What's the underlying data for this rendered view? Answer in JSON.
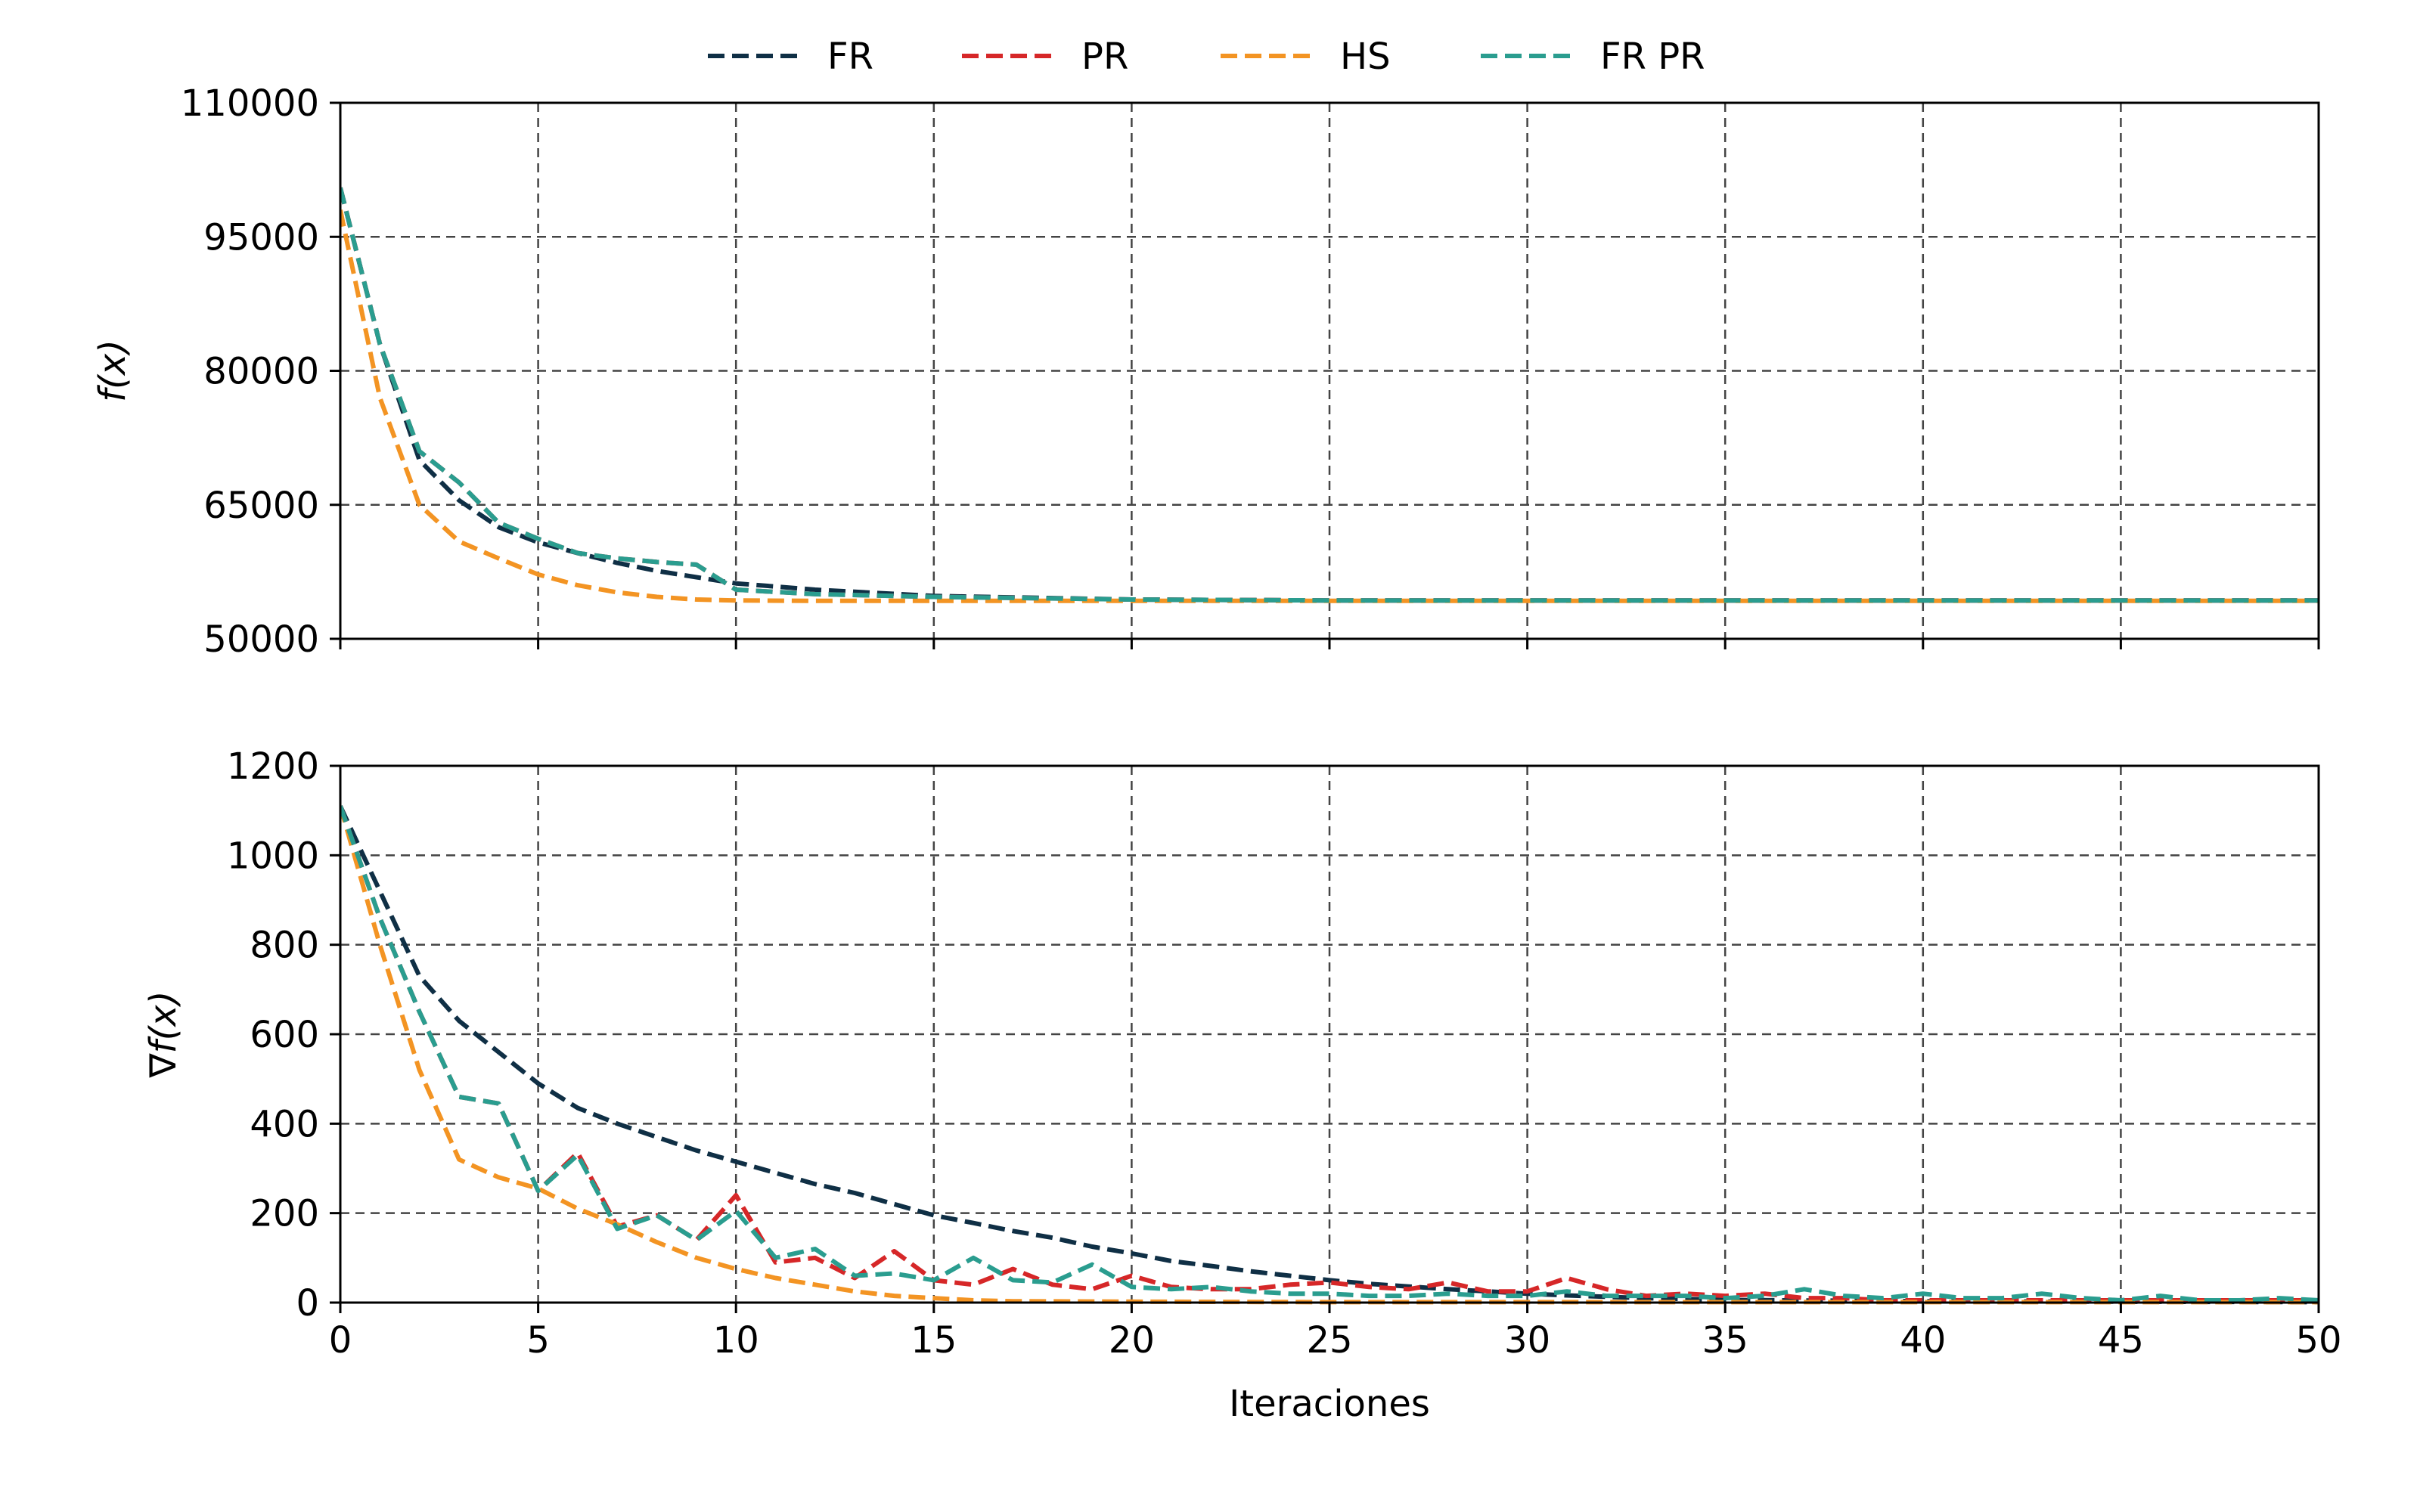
{
  "chart_data": [
    {
      "type": "line",
      "ylabel_math": "f(x)",
      "ylabel": "",
      "xlabel": "",
      "xlim": [
        0,
        50
      ],
      "ylim": [
        50000,
        110000
      ],
      "xticks": [
        0,
        5,
        10,
        15,
        20,
        25,
        30,
        35,
        40,
        45,
        50
      ],
      "yticks": [
        50000,
        65000,
        80000,
        95000,
        110000
      ],
      "grid": true,
      "series": [
        {
          "name": "FR",
          "color": "#0f2f45",
          "points": [
            [
              0,
              100500
            ],
            [
              1,
              83000
            ],
            [
              2,
              70000
            ],
            [
              3,
              65500
            ],
            [
              4,
              62500
            ],
            [
              5,
              60800
            ],
            [
              6,
              59600
            ],
            [
              7,
              58500
            ],
            [
              8,
              57600
            ],
            [
              9,
              56900
            ],
            [
              10,
              56200
            ],
            [
              12,
              55500
            ],
            [
              15,
              54800
            ],
            [
              20,
              54400
            ],
            [
              25,
              54300
            ],
            [
              30,
              54300
            ],
            [
              35,
              54300
            ],
            [
              40,
              54300
            ],
            [
              45,
              54300
            ],
            [
              50,
              54300
            ]
          ]
        },
        {
          "name": "PR",
          "color": "#d62728",
          "points": [
            [
              0,
              100500
            ],
            [
              1,
              83000
            ],
            [
              2,
              71000
            ],
            [
              3,
              67500
            ],
            [
              4,
              63000
            ],
            [
              5,
              61200
            ],
            [
              6,
              59600
            ],
            [
              7,
              59000
            ],
            [
              8,
              58600
            ],
            [
              9,
              58300
            ],
            [
              10,
              55500
            ],
            [
              12,
              55000
            ],
            [
              15,
              54700
            ],
            [
              20,
              54400
            ],
            [
              25,
              54300
            ],
            [
              30,
              54300
            ],
            [
              35,
              54300
            ],
            [
              40,
              54300
            ],
            [
              45,
              54300
            ],
            [
              50,
              54300
            ]
          ]
        },
        {
          "name": "HS",
          "color": "#f39423",
          "points": [
            [
              0,
              98000
            ],
            [
              1,
              77000
            ],
            [
              2,
              65000
            ],
            [
              3,
              60900
            ],
            [
              4,
              59000
            ],
            [
              5,
              57200
            ],
            [
              6,
              56000
            ],
            [
              7,
              55200
            ],
            [
              8,
              54700
            ],
            [
              9,
              54400
            ],
            [
              10,
              54300
            ],
            [
              12,
              54250
            ],
            [
              15,
              54250
            ],
            [
              20,
              54250
            ],
            [
              25,
              54250
            ],
            [
              30,
              54250
            ],
            [
              35,
              54250
            ],
            [
              40,
              54250
            ],
            [
              45,
              54250
            ],
            [
              50,
              54250
            ]
          ]
        },
        {
          "name": "FR PR",
          "color": "#2a9d8f",
          "points": [
            [
              0,
              100500
            ],
            [
              1,
              83000
            ],
            [
              2,
              71000
            ],
            [
              3,
              67500
            ],
            [
              4,
              63000
            ],
            [
              5,
              61200
            ],
            [
              6,
              59600
            ],
            [
              7,
              59000
            ],
            [
              8,
              58600
            ],
            [
              9,
              58300
            ],
            [
              10,
              55500
            ],
            [
              12,
              55000
            ],
            [
              15,
              54700
            ],
            [
              20,
              54400
            ],
            [
              25,
              54300
            ],
            [
              30,
              54300
            ],
            [
              35,
              54300
            ],
            [
              40,
              54300
            ],
            [
              45,
              54300
            ],
            [
              50,
              54300
            ]
          ]
        }
      ]
    },
    {
      "type": "line",
      "ylabel_math": "∇f(x)",
      "ylabel": "",
      "xlabel": "Iteraciones",
      "xlim": [
        0,
        50
      ],
      "ylim": [
        0,
        1200
      ],
      "xticks": [
        0,
        5,
        10,
        15,
        20,
        25,
        30,
        35,
        40,
        45,
        50
      ],
      "yticks": [
        0,
        200,
        400,
        600,
        800,
        1000,
        1200
      ],
      "grid": true,
      "series": [
        {
          "name": "FR",
          "color": "#0f2f45",
          "points": [
            [
              0,
              1110
            ],
            [
              1,
              920
            ],
            [
              2,
              730
            ],
            [
              3,
              630
            ],
            [
              4,
              560
            ],
            [
              5,
              490
            ],
            [
              6,
              435
            ],
            [
              7,
              400
            ],
            [
              8,
              370
            ],
            [
              9,
              340
            ],
            [
              10,
              315
            ],
            [
              11,
              290
            ],
            [
              12,
              265
            ],
            [
              13,
              245
            ],
            [
              14,
              220
            ],
            [
              15,
              195
            ],
            [
              16,
              178
            ],
            [
              17,
              160
            ],
            [
              18,
              145
            ],
            [
              19,
              125
            ],
            [
              20,
              110
            ],
            [
              21,
              93
            ],
            [
              22,
              82
            ],
            [
              23,
              70
            ],
            [
              24,
              60
            ],
            [
              25,
              50
            ],
            [
              26,
              42
            ],
            [
              27,
              36
            ],
            [
              28,
              30
            ],
            [
              29,
              25
            ],
            [
              30,
              20
            ],
            [
              31,
              16
            ],
            [
              32,
              13
            ],
            [
              33,
              10
            ],
            [
              34,
              8
            ],
            [
              35,
              6
            ],
            [
              40,
              3
            ],
            [
              45,
              2
            ],
            [
              50,
              1
            ]
          ]
        },
        {
          "name": "PR",
          "color": "#d62728",
          "points": [
            [
              0,
              1110
            ],
            [
              1,
              860
            ],
            [
              2,
              650
            ],
            [
              3,
              460
            ],
            [
              4,
              445
            ],
            [
              5,
              250
            ],
            [
              6,
              335
            ],
            [
              7,
              170
            ],
            [
              8,
              195
            ],
            [
              9,
              140
            ],
            [
              10,
              240
            ],
            [
              11,
              90
            ],
            [
              12,
              100
            ],
            [
              13,
              55
            ],
            [
              14,
              115
            ],
            [
              15,
              50
            ],
            [
              16,
              40
            ],
            [
              17,
              75
            ],
            [
              18,
              40
            ],
            [
              19,
              30
            ],
            [
              20,
              60
            ],
            [
              21,
              35
            ],
            [
              22,
              30
            ],
            [
              23,
              30
            ],
            [
              24,
              40
            ],
            [
              25,
              45
            ],
            [
              26,
              35
            ],
            [
              27,
              30
            ],
            [
              28,
              45
            ],
            [
              29,
              25
            ],
            [
              30,
              25
            ],
            [
              31,
              55
            ],
            [
              32,
              30
            ],
            [
              33,
              15
            ],
            [
              34,
              20
            ],
            [
              35,
              15
            ],
            [
              36,
              20
            ],
            [
              37,
              10
            ],
            [
              38,
              10
            ],
            [
              39,
              5
            ],
            [
              40,
              5
            ],
            [
              42,
              5
            ],
            [
              45,
              5
            ],
            [
              48,
              5
            ],
            [
              50,
              5
            ]
          ]
        },
        {
          "name": "HS",
          "color": "#f39423",
          "points": [
            [
              0,
              1110
            ],
            [
              1,
              800
            ],
            [
              2,
              520
            ],
            [
              3,
              320
            ],
            [
              4,
              280
            ],
            [
              5,
              255
            ],
            [
              6,
              210
            ],
            [
              7,
              175
            ],
            [
              8,
              135
            ],
            [
              9,
              100
            ],
            [
              10,
              75
            ],
            [
              11,
              55
            ],
            [
              12,
              40
            ],
            [
              13,
              25
            ],
            [
              14,
              15
            ],
            [
              15,
              10
            ],
            [
              16,
              5
            ],
            [
              17,
              3
            ],
            [
              20,
              2
            ],
            [
              25,
              1
            ],
            [
              30,
              1
            ],
            [
              40,
              1
            ],
            [
              50,
              1
            ]
          ]
        },
        {
          "name": "FR PR",
          "color": "#2a9d8f",
          "points": [
            [
              0,
              1110
            ],
            [
              1,
              860
            ],
            [
              2,
              650
            ],
            [
              3,
              460
            ],
            [
              4,
              445
            ],
            [
              5,
              250
            ],
            [
              6,
              330
            ],
            [
              7,
              165
            ],
            [
              8,
              195
            ],
            [
              9,
              140
            ],
            [
              10,
              205
            ],
            [
              11,
              100
            ],
            [
              12,
              120
            ],
            [
              13,
              60
            ],
            [
              14,
              65
            ],
            [
              15,
              50
            ],
            [
              16,
              100
            ],
            [
              17,
              50
            ],
            [
              18,
              45
            ],
            [
              19,
              85
            ],
            [
              20,
              35
            ],
            [
              21,
              30
            ],
            [
              22,
              35
            ],
            [
              23,
              25
            ],
            [
              24,
              20
            ],
            [
              25,
              20
            ],
            [
              26,
              15
            ],
            [
              27,
              15
            ],
            [
              28,
              20
            ],
            [
              29,
              15
            ],
            [
              30,
              15
            ],
            [
              31,
              25
            ],
            [
              32,
              15
            ],
            [
              33,
              15
            ],
            [
              34,
              15
            ],
            [
              35,
              10
            ],
            [
              36,
              15
            ],
            [
              37,
              30
            ],
            [
              38,
              15
            ],
            [
              39,
              10
            ],
            [
              40,
              20
            ],
            [
              41,
              10
            ],
            [
              42,
              10
            ],
            [
              43,
              20
            ],
            [
              44,
              10
            ],
            [
              45,
              5
            ],
            [
              46,
              15
            ],
            [
              47,
              5
            ],
            [
              48,
              5
            ],
            [
              49,
              10
            ],
            [
              50,
              5
            ]
          ]
        }
      ]
    }
  ],
  "legend": {
    "placement": "top-center",
    "entries": [
      {
        "label": "FR",
        "color": "#0f2f45"
      },
      {
        "label": "PR",
        "color": "#d62728"
      },
      {
        "label": "HS",
        "color": "#f39423"
      },
      {
        "label": "FR PR",
        "color": "#2a9d8f"
      }
    ]
  }
}
